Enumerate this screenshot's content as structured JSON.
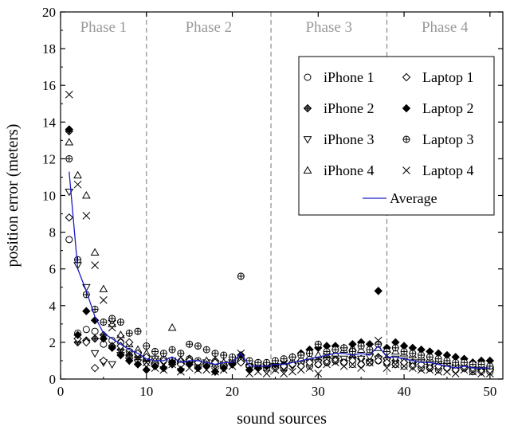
{
  "chart_data": {
    "type": "scatter",
    "title": "",
    "xlabel": "sound sources",
    "ylabel": "position error (meters)",
    "xlim": [
      0,
      51.5
    ],
    "ylim": [
      0,
      20
    ],
    "xticks": [
      0,
      10,
      20,
      30,
      40,
      50
    ],
    "yticks": [
      0,
      2,
      4,
      6,
      8,
      10,
      12,
      14,
      16,
      18,
      20
    ],
    "grid": false,
    "legend": "top-right",
    "phases": [
      {
        "label": "Phase 1",
        "start": 0,
        "end": 10
      },
      {
        "label": "Phase 2",
        "start": 10,
        "end": 24.5
      },
      {
        "label": "Phase 3",
        "start": 24.5,
        "end": 38
      },
      {
        "label": "Phase 4",
        "start": 38,
        "end": 51.5
      }
    ],
    "phase_boundaries": [
      10,
      24.5,
      38
    ],
    "x": [
      1,
      2,
      3,
      4,
      5,
      6,
      7,
      8,
      9,
      10,
      11,
      12,
      13,
      14,
      15,
      16,
      17,
      18,
      19,
      20,
      21,
      22,
      23,
      24,
      25,
      26,
      27,
      28,
      29,
      30,
      31,
      32,
      33,
      34,
      35,
      36,
      37,
      38,
      39,
      40,
      41,
      42,
      43,
      44,
      45,
      46,
      47,
      48,
      49,
      50
    ],
    "series": [
      {
        "name": "iPhone 1",
        "marker": "circle",
        "color": "#000000",
        "values": [
          7.6,
          2.5,
          2.7,
          2.6,
          1.9,
          2.1,
          2.0,
          1.5,
          1.4,
          1.2,
          1.1,
          1.0,
          1.0,
          0.9,
          1.1,
          1.0,
          0.8,
          0.9,
          0.8,
          0.9,
          1.0,
          0.7,
          0.8,
          0.6,
          0.7,
          0.6,
          0.8,
          0.9,
          0.7,
          0.8,
          0.9,
          1.0,
          0.9,
          0.8,
          0.8,
          0.9,
          1.0,
          0.9,
          0.8,
          0.7,
          0.8,
          0.6,
          0.6,
          0.5,
          0.6,
          0.5,
          0.6,
          0.4,
          0.5,
          0.4
        ]
      },
      {
        "name": "iPhone 2",
        "marker": "diamond-plus",
        "color": "#000000",
        "values": [
          13.5,
          2.0,
          2.1,
          2.2,
          2.4,
          1.8,
          1.6,
          1.3,
          1.2,
          1.0,
          0.9,
          1.1,
          0.8,
          1.0,
          0.9,
          0.9,
          0.8,
          1.0,
          0.7,
          0.9,
          1.0,
          0.8,
          0.7,
          0.8,
          0.6,
          0.8,
          0.9,
          1.0,
          1.1,
          1.0,
          1.2,
          1.1,
          1.0,
          1.2,
          1.1,
          1.0,
          1.2,
          1.1,
          1.0,
          0.9,
          0.9,
          0.8,
          0.8,
          0.7,
          0.7,
          0.6,
          0.6,
          0.6,
          0.5,
          0.5
        ]
      },
      {
        "name": "iPhone 3",
        "marker": "triangle-down",
        "color": "#000000",
        "values": [
          10.2,
          6.2,
          5.0,
          1.4,
          0.9,
          0.8,
          1.3,
          1.0,
          0.9,
          0.8,
          1.1,
          0.9,
          1.0,
          0.8,
          0.9,
          0.8,
          0.9,
          0.7,
          0.8,
          0.9,
          1.0,
          0.6,
          0.8,
          0.7,
          0.7,
          0.6,
          0.7,
          0.8,
          0.9,
          0.9,
          1.0,
          1.0,
          1.1,
          1.0,
          1.1,
          1.2,
          1.1,
          1.0,
          1.1,
          1.0,
          0.9,
          0.9,
          0.8,
          0.8,
          0.7,
          0.6,
          0.6,
          0.5,
          0.5,
          0.5
        ]
      },
      {
        "name": "iPhone 4",
        "marker": "triangle-up",
        "color": "#000000",
        "values": [
          12.9,
          11.1,
          10.0,
          6.9,
          4.9,
          3.0,
          2.4,
          1.9,
          1.6,
          1.4,
          1.0,
          1.2,
          2.8,
          1.0,
          1.1,
          0.9,
          1.0,
          0.8,
          0.9,
          1.0,
          1.1,
          0.8,
          0.7,
          0.8,
          0.9,
          0.8,
          1.0,
          1.1,
          1.2,
          1.3,
          1.5,
          1.4,
          1.6,
          1.7,
          1.6,
          1.5,
          1.7,
          1.6,
          1.5,
          1.4,
          1.3,
          1.2,
          1.1,
          1.0,
          1.0,
          0.9,
          0.8,
          0.8,
          0.7,
          0.7
        ]
      },
      {
        "name": "Laptop 1",
        "marker": "diamond",
        "color": "#000000",
        "values": [
          8.8,
          2.2,
          2.0,
          0.6,
          1.0,
          3.2,
          1.8,
          2.0,
          1.4,
          1.2,
          0.8,
          1.0,
          0.9,
          0.8,
          1.0,
          0.9,
          0.8,
          0.9,
          0.7,
          0.8,
          0.9,
          0.7,
          0.6,
          0.7,
          0.6,
          0.7,
          0.8,
          0.7,
          0.9,
          0.8,
          0.9,
          1.0,
          0.9,
          1.0,
          0.8,
          0.9,
          1.0,
          0.9,
          0.8,
          0.9,
          0.7,
          0.8,
          0.6,
          0.7,
          0.6,
          0.5,
          0.6,
          0.5,
          0.4,
          0.5
        ]
      },
      {
        "name": "Laptop 2",
        "marker": "diamond-filled",
        "color": "#000000",
        "values": [
          13.6,
          2.4,
          3.7,
          3.2,
          2.2,
          1.7,
          1.3,
          1.0,
          0.8,
          0.5,
          0.7,
          0.6,
          0.9,
          0.5,
          0.8,
          0.6,
          0.7,
          0.4,
          0.6,
          0.8,
          1.3,
          0.5,
          0.6,
          0.7,
          0.8,
          1.0,
          1.2,
          1.4,
          1.6,
          1.7,
          1.8,
          1.8,
          1.7,
          1.9,
          2.0,
          1.9,
          4.8,
          1.7,
          2.0,
          1.8,
          1.7,
          1.6,
          1.5,
          1.4,
          1.3,
          1.2,
          1.1,
          0.9,
          1.0,
          1.0
        ]
      },
      {
        "name": "Laptop 3",
        "marker": "circle-plus",
        "color": "#000000",
        "values": [
          12.0,
          6.5,
          4.6,
          3.8,
          3.1,
          3.3,
          3.1,
          2.5,
          2.6,
          1.8,
          1.5,
          1.4,
          1.6,
          1.4,
          1.9,
          1.8,
          1.6,
          1.4,
          1.3,
          1.2,
          5.6,
          1.0,
          0.9,
          0.9,
          1.0,
          1.1,
          1.2,
          1.3,
          1.4,
          1.9,
          1.5,
          1.6,
          1.7,
          1.5,
          1.8,
          1.6,
          1.9,
          1.5,
          1.7,
          1.5,
          1.4,
          1.3,
          1.2,
          1.1,
          1.0,
          0.9,
          0.9,
          0.8,
          0.8,
          0.7
        ]
      },
      {
        "name": "Laptop 4",
        "marker": "cross",
        "color": "#000000",
        "values": [
          15.5,
          10.6,
          8.9,
          6.2,
          4.3,
          2.8,
          2.2,
          1.4,
          1.2,
          0.9,
          0.6,
          0.5,
          0.8,
          0.4,
          0.6,
          0.5,
          0.5,
          0.4,
          0.5,
          0.7,
          1.4,
          0.3,
          0.4,
          0.3,
          0.5,
          0.3,
          0.4,
          0.5,
          0.6,
          0.3,
          0.8,
          0.9,
          0.7,
          0.8,
          0.6,
          0.9,
          2.1,
          0.6,
          0.8,
          0.7,
          0.6,
          0.5,
          0.5,
          0.4,
          0.4,
          0.3,
          0.5,
          0.4,
          0.3,
          0.3
        ]
      },
      {
        "name": "Average",
        "marker": "line",
        "color": "#1c1cc8",
        "values": [
          11.3,
          6.0,
          4.8,
          3.4,
          2.5,
          2.2,
          1.9,
          1.6,
          1.4,
          1.1,
          1.0,
          1.0,
          1.2,
          0.9,
          1.0,
          1.0,
          0.9,
          0.8,
          0.9,
          0.9,
          1.4,
          0.7,
          0.7,
          0.7,
          0.8,
          0.8,
          0.9,
          1.0,
          1.1,
          1.2,
          1.3,
          1.4,
          1.4,
          1.3,
          1.4,
          1.3,
          1.8,
          1.2,
          1.2,
          1.1,
          1.0,
          0.9,
          0.9,
          0.8,
          0.7,
          0.6,
          0.7,
          0.6,
          0.6,
          0.6
        ]
      }
    ]
  }
}
